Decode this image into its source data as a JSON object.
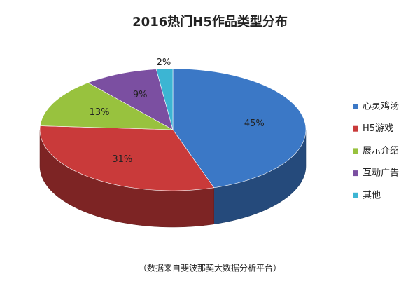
{
  "chart_data": {
    "type": "pie",
    "title": "2016热门H5作品类型分布",
    "categories": [
      "心灵鸡汤",
      "H5游戏",
      "展示介绍",
      "互动广告",
      "其他"
    ],
    "values": [
      45,
      31,
      13,
      9,
      2
    ],
    "value_labels": [
      "45%",
      "31%",
      "13%",
      "9%",
      "2%"
    ],
    "colors": [
      "#3b78c6",
      "#c93a3a",
      "#98c23e",
      "#7b4fa1",
      "#3cb5d3"
    ],
    "legend": "right",
    "source": "（数据来自斐波那契大数据分析平台）"
  }
}
